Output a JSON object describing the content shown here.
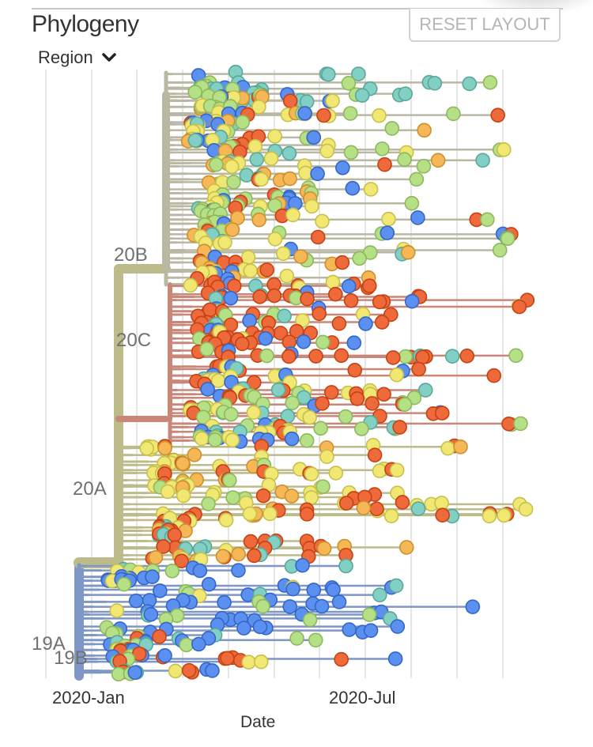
{
  "header": {
    "title": "Phylogeny",
    "reset_label": "RESET LAYOUT",
    "color_by": "Region"
  },
  "colors": {
    "blue": "#5b8ff0",
    "orange_red": "#ef6a3a",
    "yellow": "#f0e873",
    "light_orange": "#f6b757",
    "light_green": "#b5e086",
    "teal": "#82cfc4",
    "branch_19A": "#7f97c6",
    "branch_20A": "#bdbb8a",
    "branch_20B": "#b9b8a3",
    "branch_20C": "#c9877a",
    "grid": "#e6e6e6",
    "clade_label": "#707070"
  },
  "chart_data": {
    "type": "scatter",
    "title": "Phylogeny",
    "xlabel": "Date",
    "ylabel": "",
    "x_tick_labels": [
      "2020-Jan",
      "2020-Jul"
    ],
    "x_range": [
      "2019-Dec",
      "2020-Sep"
    ],
    "grid": true,
    "clades": [
      {
        "name": "19A",
        "color_key": "branch_19A"
      },
      {
        "name": "19B",
        "color_key": "branch_19A"
      },
      {
        "name": "20A",
        "color_key": "branch_20A"
      },
      {
        "name": "20B",
        "color_key": "branch_20B"
      },
      {
        "name": "20C",
        "color_key": "branch_20C"
      }
    ],
    "legend": "none"
  }
}
